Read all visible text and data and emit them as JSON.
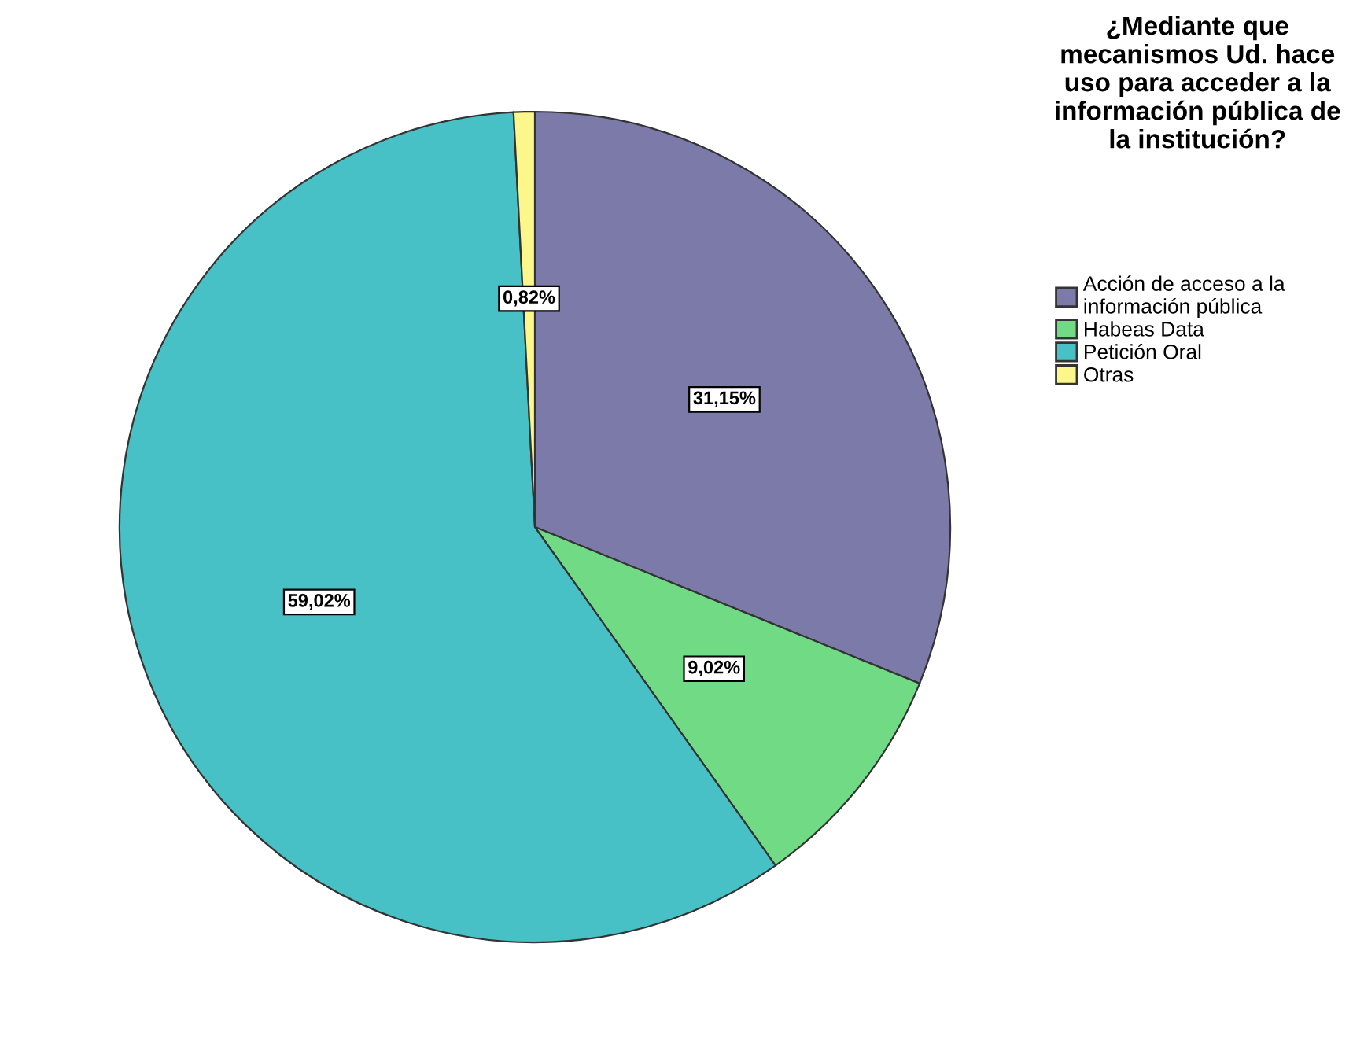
{
  "chart_data": {
    "type": "pie",
    "legend_title": "¿Mediante que mecanismos Ud. hace uso para acceder a la información pública de la institución?",
    "categories": [
      "Acción de acceso a la información pública",
      "Habeas Data",
      "Petición Oral",
      "Otras"
    ],
    "values": [
      31.15,
      9.02,
      59.02,
      0.82
    ],
    "colors": [
      "#7b7aa8",
      "#70db84",
      "#47c1c5",
      "#fbf78a"
    ],
    "value_labels": [
      "31,15%",
      "9,02%",
      "59,02%",
      "0,82%"
    ],
    "legend": "top right"
  }
}
